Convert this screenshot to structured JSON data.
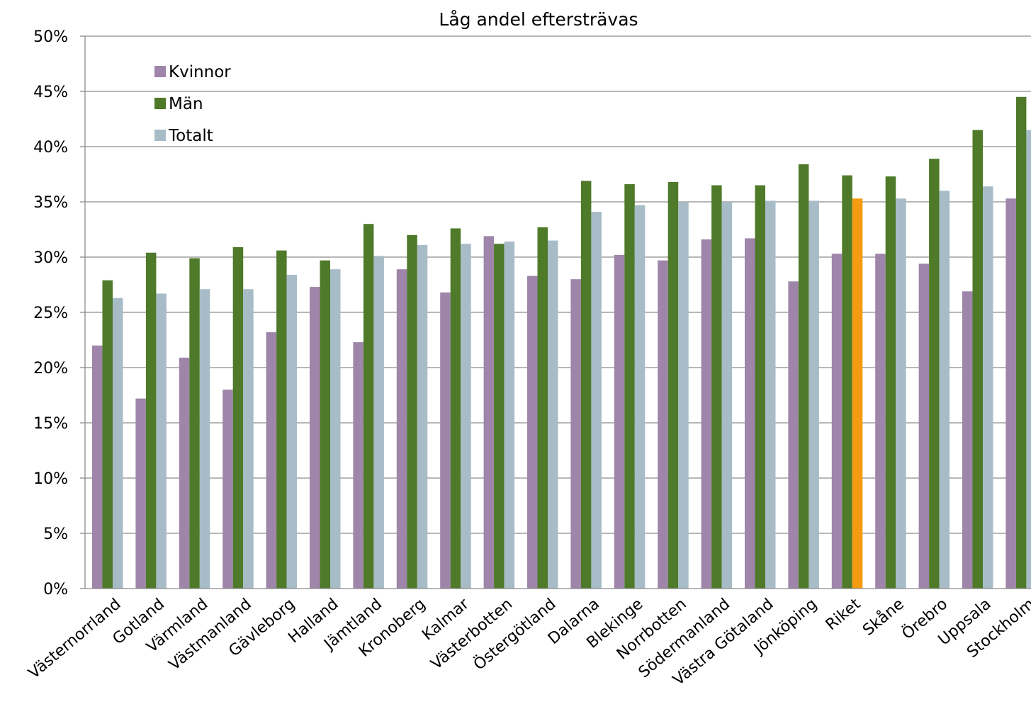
{
  "chart_data": {
    "type": "bar",
    "title": "Låg andel eftersträvas",
    "xlabel": "",
    "ylabel": "",
    "ylim": [
      0,
      50
    ],
    "y_ticks": [
      "0%",
      "5%",
      "10%",
      "15%",
      "20%",
      "25%",
      "30%",
      "35%",
      "40%",
      "45%",
      "50%"
    ],
    "grid": true,
    "legend_position": "top-left",
    "categories": [
      "Västernorrland",
      "Gotland",
      "Värmland",
      "Västmanland",
      "Gävleborg",
      "Halland",
      "Jämtland",
      "Kronoberg",
      "Kalmar",
      "Västerbotten",
      "Östergötland",
      "Dalarna",
      "Blekinge",
      "Norrbotten",
      "Södermanland",
      "Västra Götaland",
      "Jönköping",
      "Riket",
      "Skåne",
      "Örebro",
      "Uppsala",
      "Stockholm"
    ],
    "highlight": {
      "category": "Riket",
      "series": "Totalt",
      "color": "#f39c12"
    },
    "series": [
      {
        "name": "Kvinnor",
        "color": "#9e85a9",
        "values": [
          22.0,
          17.2,
          20.9,
          18.0,
          23.2,
          27.3,
          22.3,
          28.9,
          26.8,
          31.9,
          28.3,
          28.0,
          30.2,
          29.7,
          31.6,
          31.7,
          27.8,
          30.3,
          30.3,
          29.4,
          26.9,
          35.3
        ]
      },
      {
        "name": "Män",
        "color": "#4e7a29",
        "values": [
          27.9,
          30.4,
          29.9,
          30.9,
          30.6,
          29.7,
          33.0,
          32.0,
          32.6,
          31.2,
          32.7,
          36.9,
          36.6,
          36.8,
          36.5,
          36.5,
          38.4,
          37.4,
          37.3,
          38.9,
          41.5,
          44.5
        ]
      },
      {
        "name": "Totalt",
        "color": "#a8bcc8",
        "values": [
          26.3,
          26.7,
          27.1,
          27.1,
          28.4,
          28.9,
          30.1,
          31.1,
          31.2,
          31.4,
          31.5,
          34.1,
          34.7,
          35.0,
          35.0,
          35.1,
          35.1,
          35.3,
          35.3,
          36.0,
          36.4,
          41.5
        ]
      }
    ]
  }
}
